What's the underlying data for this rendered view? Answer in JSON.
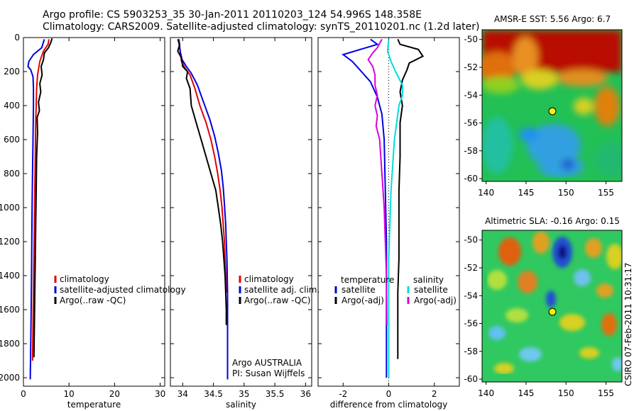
{
  "header": {
    "line1": "Argo profile: CS 5903253_35 30-Jan-2011 20110203_124 54.996S 148.358E",
    "line2": "Climatology: CARS2009. Satellite-adjusted climatology: synTS_20110201.nc (1.2d later)"
  },
  "side_label": "CSIRO 07-Feb-2011 10:31:17",
  "chart_data": [
    {
      "type": "line",
      "xlabel": "temperature",
      "xlim": [
        0,
        31
      ],
      "ylim": [
        2050,
        0
      ],
      "xticks": [
        0,
        10,
        20,
        30
      ],
      "yticks": [
        0,
        200,
        400,
        600,
        800,
        1000,
        1200,
        1400,
        1600,
        1800,
        2000
      ],
      "legend": [
        "climatology",
        "satellite-adjusted climatology",
        "Argo(..raw -QC)"
      ],
      "series": [
        {
          "name": "climatology",
          "color": "#e00000",
          "points": [
            [
              5.6,
              10
            ],
            [
              5.4,
              40
            ],
            [
              4.4,
              80
            ],
            [
              3.6,
              140
            ],
            [
              3.1,
              220
            ],
            [
              2.9,
              300
            ],
            [
              2.8,
              400
            ],
            [
              2.7,
              500
            ],
            [
              2.6,
              700
            ],
            [
              2.5,
              900
            ],
            [
              2.4,
              1100
            ],
            [
              2.3,
              1300
            ],
            [
              2.2,
              1500
            ],
            [
              2.1,
              1700
            ],
            [
              2.0,
              1900
            ]
          ]
        },
        {
          "name": "satellite-adjusted climatology",
          "color": "#0000e0",
          "points": [
            [
              4.6,
              10
            ],
            [
              4.0,
              60
            ],
            [
              2.2,
              100
            ],
            [
              1.2,
              140
            ],
            [
              1.0,
              170
            ],
            [
              1.6,
              190
            ],
            [
              2.1,
              230
            ],
            [
              2.2,
              300
            ],
            [
              2.2,
              400
            ],
            [
              2.1,
              600
            ],
            [
              2.0,
              800
            ],
            [
              1.9,
              1000
            ],
            [
              1.8,
              1300
            ],
            [
              1.7,
              1600
            ],
            [
              1.6,
              1800
            ],
            [
              1.5,
              2010
            ]
          ]
        },
        {
          "name": "Argo(..raw -QC)",
          "color": "#000000",
          "points": [
            [
              6.3,
              5
            ],
            [
              6.0,
              30
            ],
            [
              5.5,
              60
            ],
            [
              4.6,
              90
            ],
            [
              4.4,
              130
            ],
            [
              3.9,
              170
            ],
            [
              4.1,
              220
            ],
            [
              3.6,
              270
            ],
            [
              3.8,
              320
            ],
            [
              3.3,
              380
            ],
            [
              3.5,
              430
            ],
            [
              3.0,
              470
            ],
            [
              3.1,
              560
            ],
            [
              2.9,
              700
            ],
            [
              2.8,
              900
            ],
            [
              2.7,
              1100
            ],
            [
              2.6,
              1300
            ],
            [
              2.5,
              1500
            ],
            [
              2.4,
              1700
            ],
            [
              2.3,
              1880
            ]
          ]
        }
      ]
    },
    {
      "type": "line",
      "xlabel": "salinity",
      "xlim": [
        33.8,
        36.1
      ],
      "ylim": [
        2050,
        0
      ],
      "xticks": [
        34,
        34.5,
        35,
        35.5,
        36
      ],
      "legend": [
        "climatology",
        "satellite adj. clim.",
        "Argo(..raw -QC)"
      ],
      "annotation": [
        "Argo AUSTRALIA",
        "PI: Susan Wijffels"
      ],
      "series": [
        {
          "name": "climatology",
          "color": "#e00000",
          "points": [
            [
              33.94,
              10
            ],
            [
              33.96,
              80
            ],
            [
              33.98,
              140
            ],
            [
              34.04,
              180
            ],
            [
              34.12,
              220
            ],
            [
              34.2,
              300
            ],
            [
              34.28,
              400
            ],
            [
              34.38,
              500
            ],
            [
              34.46,
              600
            ],
            [
              34.52,
              700
            ],
            [
              34.57,
              800
            ],
            [
              34.61,
              900
            ],
            [
              34.64,
              1000
            ],
            [
              34.66,
              1100
            ],
            [
              34.68,
              1200
            ],
            [
              34.69,
              1300
            ],
            [
              34.7,
              1400
            ],
            [
              34.71,
              1500
            ]
          ]
        },
        {
          "name": "satellite adj. clim.",
          "color": "#0000e0",
          "points": [
            [
              33.93,
              10
            ],
            [
              33.96,
              80
            ],
            [
              33.99,
              130
            ],
            [
              34.06,
              170
            ],
            [
              34.14,
              210
            ],
            [
              34.24,
              280
            ],
            [
              34.34,
              380
            ],
            [
              34.44,
              480
            ],
            [
              34.52,
              580
            ],
            [
              34.58,
              680
            ],
            [
              34.63,
              780
            ],
            [
              34.66,
              880
            ],
            [
              34.68,
              980
            ],
            [
              34.7,
              1100
            ],
            [
              34.71,
              1200
            ],
            [
              34.72,
              1300
            ],
            [
              34.73,
              1500
            ],
            [
              34.73,
              1800
            ],
            [
              34.73,
              2010
            ]
          ]
        },
        {
          "name": "Argo(..raw -QC)",
          "color": "#000000",
          "points": [
            [
              33.92,
              10
            ],
            [
              33.95,
              40
            ],
            [
              33.92,
              80
            ],
            [
              33.98,
              120
            ],
            [
              34.0,
              170
            ],
            [
              34.08,
              200
            ],
            [
              34.06,
              240
            ],
            [
              34.12,
              300
            ],
            [
              34.14,
              400
            ],
            [
              34.22,
              500
            ],
            [
              34.3,
              600
            ],
            [
              34.38,
              700
            ],
            [
              34.46,
              800
            ],
            [
              34.54,
              900
            ],
            [
              34.58,
              1000
            ],
            [
              34.62,
              1100
            ],
            [
              34.65,
              1200
            ],
            [
              34.67,
              1300
            ],
            [
              34.69,
              1400
            ],
            [
              34.7,
              1500
            ],
            [
              34.71,
              1600
            ],
            [
              34.71,
              1690
            ]
          ]
        }
      ]
    },
    {
      "type": "line",
      "xlabel": "difference from climatology",
      "xlim": [
        -3.1,
        3.1
      ],
      "ylim": [
        2050,
        0
      ],
      "xticks": [
        -2,
        0,
        2
      ],
      "legend_title": [
        "temperature",
        "salinity"
      ],
      "legend": [
        "satellite",
        "Argo(-adj)",
        "satellite",
        "Argo(-adj)"
      ],
      "series": [
        {
          "name": "satellite",
          "color": "#0000e0",
          "points": [
            [
              -0.8,
              10
            ],
            [
              -0.5,
              40
            ],
            [
              -2.0,
              100
            ],
            [
              -1.6,
              140
            ],
            [
              -1.2,
              200
            ],
            [
              -0.8,
              260
            ],
            [
              -0.5,
              350
            ],
            [
              -0.3,
              450
            ],
            [
              -0.2,
              600
            ],
            [
              -0.15,
              900
            ],
            [
              -0.1,
              1200
            ],
            [
              -0.1,
              1500
            ],
            [
              -0.1,
              2000
            ]
          ]
        },
        {
          "name": "Argo(-adj)",
          "color": "#000000",
          "points": [
            [
              0.4,
              10
            ],
            [
              0.5,
              40
            ],
            [
              1.3,
              70
            ],
            [
              1.5,
              110
            ],
            [
              0.9,
              150
            ],
            [
              0.8,
              190
            ],
            [
              0.6,
              250
            ],
            [
              0.5,
              320
            ],
            [
              0.6,
              400
            ],
            [
              0.5,
              500
            ],
            [
              0.5,
              700
            ],
            [
              0.45,
              900
            ],
            [
              0.45,
              1100
            ],
            [
              0.45,
              1300
            ],
            [
              0.4,
              1500
            ],
            [
              0.4,
              1700
            ],
            [
              0.4,
              1890
            ]
          ]
        },
        {
          "name": "satellite",
          "color": "#00dddd",
          "points": [
            [
              0.0,
              10
            ],
            [
              -0.05,
              80
            ],
            [
              0.1,
              140
            ],
            [
              0.3,
              200
            ],
            [
              0.6,
              280
            ],
            [
              0.6,
              340
            ],
            [
              0.45,
              400
            ],
            [
              0.35,
              500
            ],
            [
              0.25,
              600
            ],
            [
              0.2,
              700
            ],
            [
              0.15,
              800
            ],
            [
              0.1,
              900
            ],
            [
              0.05,
              1100
            ],
            [
              0.0,
              1300
            ],
            [
              0.0,
              2000
            ]
          ]
        },
        {
          "name": "Argo(-adj)",
          "color": "#dd00dd",
          "points": [
            [
              -0.3,
              10
            ],
            [
              -0.5,
              60
            ],
            [
              -0.7,
              90
            ],
            [
              -0.9,
              130
            ],
            [
              -0.7,
              170
            ],
            [
              -0.6,
              220
            ],
            [
              -0.6,
              280
            ],
            [
              -0.5,
              340
            ],
            [
              -0.6,
              400
            ],
            [
              -0.5,
              460
            ],
            [
              -0.55,
              520
            ],
            [
              -0.4,
              600
            ],
            [
              -0.35,
              700
            ],
            [
              -0.3,
              800
            ],
            [
              -0.25,
              900
            ],
            [
              -0.2,
              1000
            ],
            [
              -0.15,
              1200
            ],
            [
              -0.1,
              1400
            ],
            [
              -0.08,
              1690
            ]
          ]
        }
      ]
    },
    {
      "type": "heatmap",
      "title": "AMSR-E SST: 5.56 Argo: 6.7",
      "xticks": [
        140,
        145,
        150,
        155
      ],
      "yticks": [
        -50,
        -52,
        -54,
        -56,
        -58,
        -60
      ],
      "xlim": [
        139.5,
        157
      ],
      "ylim": [
        -60.2,
        -49.3
      ],
      "marker": {
        "lon": 148.358,
        "lat": -54.996
      }
    },
    {
      "type": "heatmap",
      "title": "Altimetric SLA: -0.16 Argo: 0.15",
      "xticks": [
        140,
        145,
        150,
        155
      ],
      "yticks": [
        -50,
        -52,
        -54,
        -56,
        -58,
        -60
      ],
      "xlim": [
        139.5,
        157
      ],
      "ylim": [
        -60.2,
        -49.3
      ],
      "marker": {
        "lon": 148.358,
        "lat": -54.996
      }
    }
  ]
}
